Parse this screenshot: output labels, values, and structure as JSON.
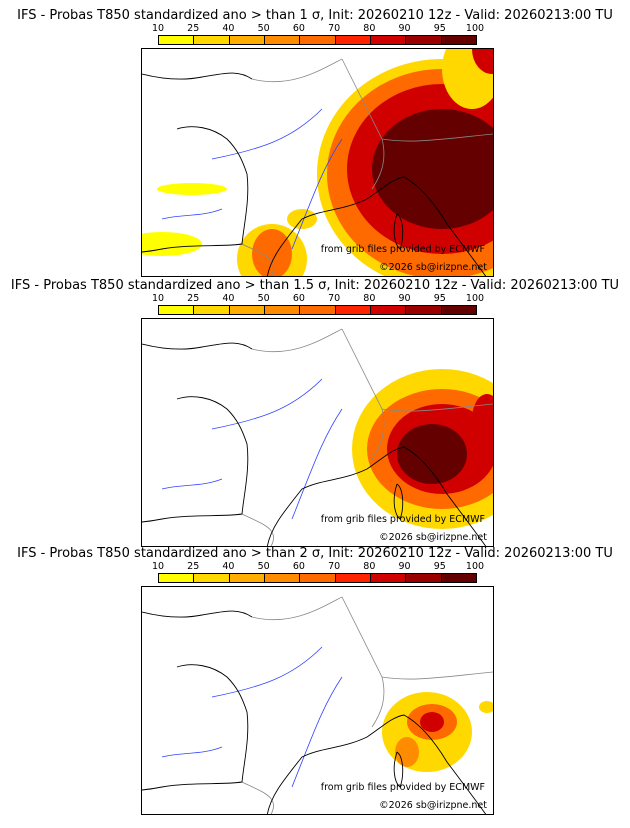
{
  "panels": [
    {
      "title": "IFS - Probas T850  standardized ano > than 1 σ, Init: 20260210 12z - Valid: 20260213:00 TU",
      "threshold": "1 σ"
    },
    {
      "title": "IFS - Probas T850  standardized ano > than 1.5 σ, Init: 20260210 12z - Valid: 20260213:00 TU",
      "threshold": "1.5 σ"
    },
    {
      "title": "IFS - Probas T850  standardized ano > than 2 σ, Init: 20260210 12z - Valid: 20260213:00 TU",
      "threshold": "2 σ"
    }
  ],
  "colorbar": {
    "ticks": [
      "10",
      "25",
      "40",
      "50",
      "60",
      "70",
      "80",
      "90",
      "95",
      "100"
    ],
    "colors": [
      "#ffff00",
      "#ffd800",
      "#ffad00",
      "#ff8c00",
      "#ff6a00",
      "#ff2400",
      "#d00000",
      "#9a0000",
      "#640000"
    ]
  },
  "credits": {
    "source": "from grib files provided by ECMWF",
    "copyright": "©2026 sb@irizpne.net"
  }
}
